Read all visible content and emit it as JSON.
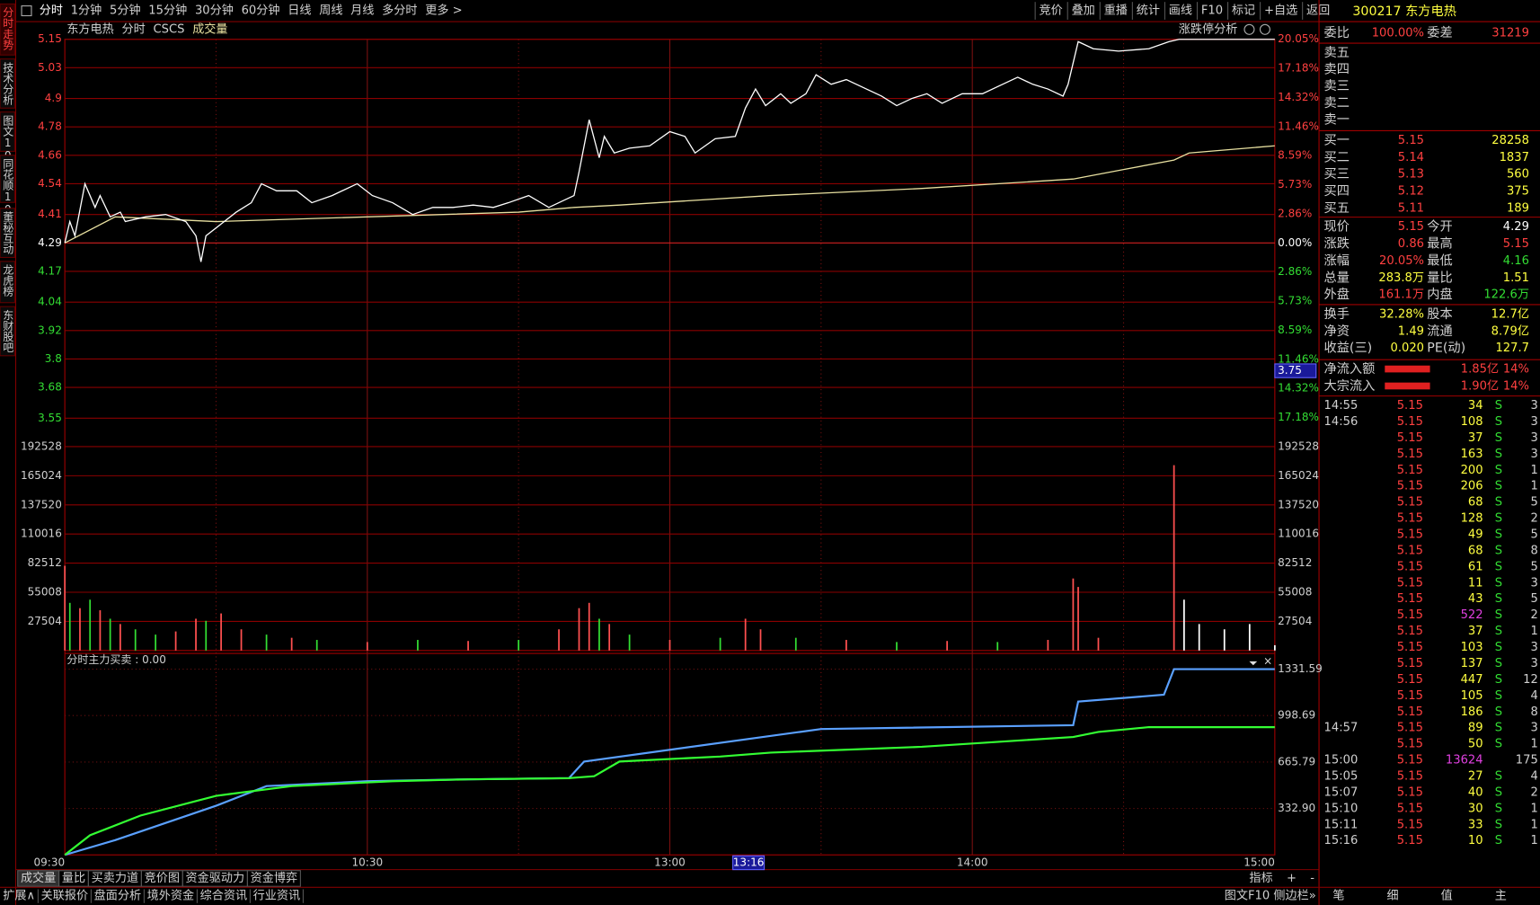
{
  "toolbar": {
    "left": [
      "分时",
      "1分钟",
      "5分钟",
      "15分钟",
      "30分钟",
      "60分钟",
      "日线",
      "周线",
      "月线",
      "多分时",
      "更多 >"
    ],
    "right": [
      "竞价",
      "叠加",
      "重播",
      "统计",
      "画线",
      "F10",
      "标记",
      "+自选",
      "返回"
    ]
  },
  "sidebar": [
    "分时走势",
    "技术分析",
    "图文10",
    "同花顺10",
    "董秘互动",
    "龙虎榜",
    "东财股吧"
  ],
  "chart": {
    "header": [
      "东方电热",
      "分时",
      "CSCS",
      "成交量"
    ],
    "limit_button": "涨跌停分析",
    "xlim": [
      0,
      240
    ],
    "xticks": [
      {
        "value": 0,
        "label": "09:30"
      },
      {
        "value": 60,
        "label": "10:30"
      },
      {
        "value": 120,
        "label": "13:00"
      },
      {
        "value": 180,
        "label": "14:00"
      },
      {
        "value": 240,
        "label": "15:00"
      }
    ],
    "xgrid": [
      30,
      60,
      90,
      120,
      150,
      180,
      210
    ],
    "price": {
      "ylim": [
        3.49,
        5.15
      ],
      "yticks": [
        5.15,
        5.03,
        4.9,
        4.78,
        4.66,
        4.54,
        4.41,
        4.29,
        4.17,
        4.04,
        3.92,
        3.8,
        3.68,
        3.55
      ],
      "pct_lim": [
        -18.65,
        20.05
      ],
      "pct_ticks": [
        {
          "value": 20.05,
          "label": "20.05%"
        },
        {
          "value": 17.18,
          "label": "17.18%"
        },
        {
          "value": 14.32,
          "label": "14.32%"
        },
        {
          "value": 11.46,
          "label": "11.46%"
        },
        {
          "value": 8.59,
          "label": "8.59%"
        },
        {
          "value": 5.73,
          "label": "5.73%"
        },
        {
          "value": 2.86,
          "label": "2.86%"
        },
        {
          "value": 0,
          "label": "0.00%"
        },
        {
          "value": -2.86,
          "label": "2.86%"
        },
        {
          "value": -5.73,
          "label": "5.73%"
        },
        {
          "value": -8.59,
          "label": "8.59%"
        },
        {
          "value": -11.46,
          "label": "11.46%"
        },
        {
          "value": -14.32,
          "label": "14.32%"
        },
        {
          "value": -17.18,
          "label": "17.18%"
        }
      ],
      "color": "#ffffff",
      "x": [
        0,
        1,
        2,
        4,
        6,
        7,
        9,
        11,
        12,
        16,
        20,
        24,
        26,
        27,
        28,
        31,
        34,
        37,
        39,
        42,
        46,
        49,
        53,
        58,
        61,
        65,
        69,
        73,
        77,
        81,
        85,
        88,
        92,
        96,
        101,
        102,
        104,
        106,
        107,
        109,
        112,
        116,
        120,
        123,
        125,
        129,
        133,
        135,
        137,
        139,
        142,
        144,
        147,
        149,
        152,
        155,
        159,
        162,
        165,
        168,
        171,
        174,
        178,
        182,
        186,
        189,
        192,
        195,
        198,
        199,
        201,
        204,
        209,
        215,
        219,
        221,
        240
      ],
      "values": [
        4.29,
        4.38,
        4.32,
        4.54,
        4.44,
        4.49,
        4.4,
        4.42,
        4.38,
        4.4,
        4.41,
        4.38,
        4.32,
        4.21,
        4.32,
        4.37,
        4.42,
        4.46,
        4.54,
        4.51,
        4.51,
        4.46,
        4.49,
        4.54,
        4.49,
        4.46,
        4.41,
        4.44,
        4.44,
        4.45,
        4.44,
        4.46,
        4.49,
        4.44,
        4.49,
        4.59,
        4.81,
        4.65,
        4.74,
        4.67,
        4.69,
        4.7,
        4.76,
        4.74,
        4.67,
        4.73,
        4.74,
        4.86,
        4.94,
        4.87,
        4.92,
        4.88,
        4.92,
        5.0,
        4.96,
        4.98,
        4.94,
        4.91,
        4.87,
        4.9,
        4.92,
        4.88,
        4.92,
        4.92,
        4.96,
        4.99,
        4.96,
        4.94,
        4.91,
        4.96,
        5.14,
        5.11,
        5.1,
        5.11,
        5.14,
        5.15,
        5.15
      ],
      "avg_color": "#e8e0a0",
      "avg_x": [
        0,
        10,
        30,
        60,
        90,
        101,
        110,
        140,
        170,
        200,
        210,
        220,
        223,
        240
      ],
      "avg_values": [
        4.29,
        4.4,
        4.38,
        4.4,
        4.42,
        4.44,
        4.45,
        4.49,
        4.52,
        4.56,
        4.6,
        4.64,
        4.67,
        4.7
      ]
    },
    "volume": {
      "ylim": [
        0,
        206000
      ],
      "yticks": [
        192528,
        165024,
        137520,
        110016,
        82512,
        55008,
        27504
      ],
      "x": [
        0,
        1,
        3,
        5,
        7,
        9,
        11,
        14,
        18,
        22,
        26,
        28,
        31,
        35,
        40,
        45,
        50,
        60,
        70,
        80,
        90,
        98,
        102,
        104,
        106,
        108,
        112,
        120,
        130,
        135,
        138,
        145,
        155,
        165,
        175,
        185,
        195,
        200,
        201,
        205,
        220,
        222,
        225,
        230,
        235,
        240
      ],
      "values": [
        80000,
        45000,
        40000,
        48000,
        38000,
        30000,
        25000,
        20000,
        15000,
        18000,
        30000,
        28000,
        35000,
        20000,
        15000,
        12000,
        10000,
        8000,
        10000,
        9000,
        10000,
        20000,
        40000,
        45000,
        30000,
        25000,
        15000,
        10000,
        12000,
        30000,
        20000,
        12000,
        10000,
        8000,
        9000,
        8000,
        10000,
        68000,
        60000,
        12000,
        175000,
        48000,
        25000,
        20000,
        25000,
        5000
      ],
      "colors": [
        "#ff5050",
        "#33dd33",
        "#ff5050",
        "#33dd33",
        "#ff5050",
        "#33dd33",
        "#ff5050",
        "#33dd33",
        "#33dd33",
        "#ff5050",
        "#ff5050",
        "#33dd33",
        "#ff5050",
        "#ff5050",
        "#33dd33",
        "#ff5050",
        "#33dd33",
        "#ff5050",
        "#33dd33",
        "#ff5050",
        "#33dd33",
        "#ff5050",
        "#ff5050",
        "#ff5050",
        "#33dd33",
        "#ff5050",
        "#33dd33",
        "#ff5050",
        "#33dd33",
        "#ff5050",
        "#ff5050",
        "#33dd33",
        "#ff5050",
        "#33dd33",
        "#ff5050",
        "#33dd33",
        "#ff5050",
        "#ff5050",
        "#ff5050",
        "#ff5050",
        "#ff5050",
        "#ffffff",
        "#ffffff",
        "#ffffff",
        "#ffffff",
        "#ffffff"
      ]
    },
    "indicator": {
      "title": "分时主力买卖 : 0.00",
      "ylim": [
        0,
        1444
      ],
      "yticks": [
        1331.59,
        998.69,
        665.79,
        {
          "value": 332.9,
          "label": "332.90"
        }
      ],
      "series": [
        {
          "color": "#5aa0ff",
          "x": [
            0,
            10,
            30,
            40,
            60,
            80,
            100,
            103,
            150,
            200,
            201,
            218,
            220,
            240
          ],
          "values": [
            0,
            106,
            352,
            493,
            528,
            542,
            550,
            669,
            902,
            930,
            1099,
            1148,
            1331.59,
            1331.59
          ]
        },
        {
          "color": "#33ff33",
          "x": [
            0,
            5,
            15,
            30,
            45,
            65,
            80,
            100,
            105,
            110,
            130,
            140,
            170,
            200,
            205,
            215,
            240
          ],
          "values": [
            0,
            141,
            282,
            423,
            493,
            528,
            542,
            550,
            564,
            669,
            705,
            733,
            775,
            845,
            881,
            916,
            916
          ]
        }
      ]
    },
    "cursor": {
      "time": "13:16",
      "price": 3.75
    },
    "tabs": [
      "成交量",
      "量比",
      "买卖力道",
      "竞价图",
      "资金驱动力",
      "资金博弈"
    ],
    "tab_tools": [
      "指标",
      "+",
      "-"
    ]
  },
  "bottom_bar": {
    "left": [
      "扩展∧",
      "关联报价",
      "盘面分析",
      "境外资金",
      "综合资讯",
      "行业资讯"
    ],
    "right": "图文F10 侧边栏»",
    "panel_tabs": [
      "笔",
      "细",
      "值",
      "主"
    ]
  },
  "quote": {
    "code_name": "300217 东方电热",
    "wei": [
      "委比",
      "100.00%",
      "委差",
      "31219"
    ],
    "asks": [
      "卖五",
      "卖四",
      "卖三",
      "卖二",
      "卖一"
    ],
    "bids": [
      [
        "买一",
        "5.15",
        "28258"
      ],
      [
        "买二",
        "5.14",
        "1837"
      ],
      [
        "买三",
        "5.13",
        "560"
      ],
      [
        "买四",
        "5.12",
        "375"
      ],
      [
        "买五",
        "5.11",
        "189"
      ]
    ],
    "stats": [
      [
        "现价",
        "5.15",
        "今开",
        "4.29"
      ],
      [
        "涨跌",
        "0.86",
        "最高",
        "5.15"
      ],
      [
        "涨幅",
        "20.05%",
        "最低",
        "4.16"
      ],
      [
        "总量",
        "283.8万",
        "量比",
        "1.51"
      ],
      [
        "外盘",
        "161.1万",
        "内盘",
        "122.6万"
      ]
    ],
    "fundamentals": [
      [
        "换手",
        "32.28%",
        "股本",
        "12.7亿"
      ],
      [
        "净资",
        "1.49",
        "流通",
        "8.79亿"
      ],
      [
        "收益(三)",
        "0.020",
        "PE(动)",
        "127.7"
      ]
    ],
    "flows": [
      [
        "净流入额",
        "1.85亿",
        "14%"
      ],
      [
        "大宗流入",
        "1.90亿",
        "14%"
      ]
    ],
    "ticks": [
      [
        "14:55",
        "5.15",
        "34",
        "S",
        "3"
      ],
      [
        "14:56",
        "5.15",
        "108",
        "S",
        "3"
      ],
      [
        null,
        "5.15",
        "37",
        "S",
        "3"
      ],
      [
        null,
        "5.15",
        "163",
        "S",
        "3"
      ],
      [
        null,
        "5.15",
        "200",
        "S",
        "1"
      ],
      [
        null,
        "5.15",
        "206",
        "S",
        "1"
      ],
      [
        null,
        "5.15",
        "68",
        "S",
        "5"
      ],
      [
        null,
        "5.15",
        "128",
        "S",
        "2"
      ],
      [
        null,
        "5.15",
        "49",
        "S",
        "5"
      ],
      [
        null,
        "5.15",
        "68",
        "S",
        "8"
      ],
      [
        null,
        "5.15",
        "61",
        "S",
        "5"
      ],
      [
        null,
        "5.15",
        "11",
        "S",
        "3"
      ],
      [
        null,
        "5.15",
        "43",
        "S",
        "5"
      ],
      [
        null,
        "5.15",
        "522",
        "S",
        "2"
      ],
      [
        null,
        "5.15",
        "37",
        "S",
        "1"
      ],
      [
        null,
        "5.15",
        "103",
        "S",
        "3"
      ],
      [
        null,
        "5.15",
        "137",
        "S",
        "3"
      ],
      [
        null,
        "5.15",
        "447",
        "S",
        "12"
      ],
      [
        null,
        "5.15",
        "105",
        "S",
        "4"
      ],
      [
        null,
        "5.15",
        "186",
        "S",
        "8"
      ],
      [
        "14:57",
        "5.15",
        "89",
        "S",
        "3"
      ],
      [
        null,
        "5.15",
        "50",
        "S",
        "1"
      ],
      [
        "15:00",
        "5.15",
        "13624",
        "",
        "175"
      ],
      [
        "15:05",
        "5.15",
        "27",
        "S",
        "4"
      ],
      [
        "15:07",
        "5.15",
        "40",
        "S",
        "2"
      ],
      [
        "15:10",
        "5.15",
        "30",
        "S",
        "1"
      ],
      [
        "15:11",
        "5.15",
        "33",
        "S",
        "1"
      ],
      [
        "15:16",
        "5.15",
        "10",
        "S",
        "1"
      ]
    ]
  }
}
